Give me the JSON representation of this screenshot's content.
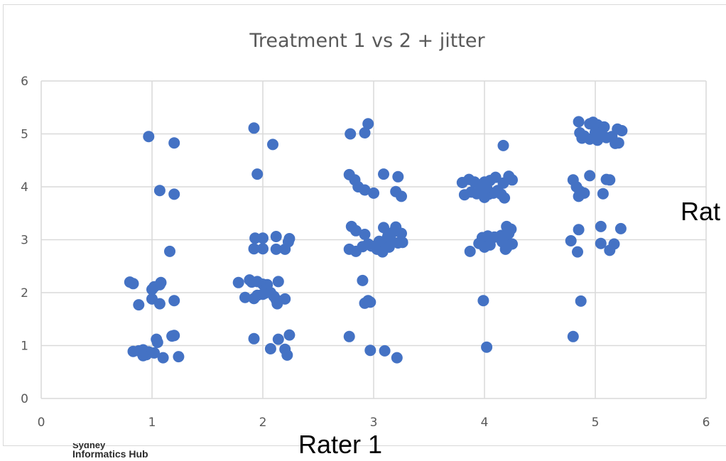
{
  "colors": {
    "point": "#4472c4",
    "grid": "#d9d9d9",
    "text": "#595959",
    "frame": "#d9d9d9"
  },
  "logo": {
    "line1": "Sydney",
    "line2": "Informatics Hub"
  },
  "chart_data": {
    "type": "scatter",
    "title": "Treatment 1 vs 2 + jitter",
    "xlabel": "Rater 1",
    "ylabel": "Rat",
    "xlim": [
      0,
      6
    ],
    "ylim": [
      0,
      6
    ],
    "xticks": [
      0,
      1,
      2,
      3,
      4,
      5,
      6
    ],
    "yticks": [
      0,
      1,
      2,
      3,
      4,
      5,
      6
    ],
    "grid": true,
    "legend": "none",
    "series": [
      {
        "color": "#4472c4",
        "points": [
          [
            0.97,
            4.95
          ],
          [
            1.2,
            4.83
          ],
          [
            1.07,
            3.93
          ],
          [
            1.2,
            3.86
          ],
          [
            1.16,
            2.78
          ],
          [
            0.8,
            2.2
          ],
          [
            0.83,
            2.17
          ],
          [
            1.02,
            2.11
          ],
          [
            1.07,
            2.15
          ],
          [
            1.0,
            2.06
          ],
          [
            1.08,
            2.19
          ],
          [
            1.0,
            1.88
          ],
          [
            1.07,
            1.79
          ],
          [
            1.2,
            1.85
          ],
          [
            0.88,
            1.77
          ],
          [
            1.18,
            1.18
          ],
          [
            1.2,
            1.19
          ],
          [
            1.04,
            1.12
          ],
          [
            1.05,
            1.06
          ],
          [
            0.83,
            0.89
          ],
          [
            0.88,
            0.9
          ],
          [
            0.92,
            0.92
          ],
          [
            0.95,
            0.83
          ],
          [
            0.97,
            0.88
          ],
          [
            0.92,
            0.81
          ],
          [
            1.02,
            0.86
          ],
          [
            1.1,
            0.77
          ],
          [
            1.24,
            0.79
          ],
          [
            1.92,
            5.11
          ],
          [
            2.09,
            4.8
          ],
          [
            1.95,
            4.24
          ],
          [
            1.93,
            3.03
          ],
          [
            2.0,
            3.03
          ],
          [
            2.12,
            3.06
          ],
          [
            2.24,
            3.02
          ],
          [
            1.92,
            2.83
          ],
          [
            2.0,
            2.83
          ],
          [
            2.12,
            2.82
          ],
          [
            2.23,
            2.96
          ],
          [
            2.2,
            2.82
          ],
          [
            1.78,
            2.19
          ],
          [
            1.88,
            2.24
          ],
          [
            1.9,
            2.2
          ],
          [
            1.95,
            2.21
          ],
          [
            2.0,
            2.16
          ],
          [
            2.04,
            2.15
          ],
          [
            2.14,
            2.21
          ],
          [
            1.84,
            1.91
          ],
          [
            1.92,
            1.89
          ],
          [
            1.95,
            1.95
          ],
          [
            2.0,
            1.97
          ],
          [
            2.02,
            1.99
          ],
          [
            2.07,
            2.0
          ],
          [
            2.1,
            1.93
          ],
          [
            2.12,
            1.87
          ],
          [
            2.13,
            1.79
          ],
          [
            2.2,
            1.88
          ],
          [
            1.92,
            1.13
          ],
          [
            2.14,
            1.12
          ],
          [
            2.24,
            1.2
          ],
          [
            2.07,
            0.94
          ],
          [
            2.2,
            0.93
          ],
          [
            2.22,
            0.82
          ],
          [
            2.79,
            5.0
          ],
          [
            2.92,
            5.02
          ],
          [
            2.95,
            5.19
          ],
          [
            2.78,
            4.23
          ],
          [
            2.83,
            4.13
          ],
          [
            2.86,
            4.0
          ],
          [
            2.92,
            3.94
          ],
          [
            3.0,
            3.88
          ],
          [
            3.09,
            4.24
          ],
          [
            3.2,
            3.91
          ],
          [
            3.25,
            3.82
          ],
          [
            3.22,
            4.19
          ],
          [
            2.8,
            3.25
          ],
          [
            2.84,
            3.17
          ],
          [
            2.92,
            3.1
          ],
          [
            3.09,
            3.23
          ],
          [
            3.13,
            3.08
          ],
          [
            3.18,
            3.15
          ],
          [
            3.2,
            3.24
          ],
          [
            3.25,
            3.12
          ],
          [
            2.78,
            2.82
          ],
          [
            2.84,
            2.78
          ],
          [
            2.9,
            2.87
          ],
          [
            2.95,
            2.92
          ],
          [
            2.98,
            2.88
          ],
          [
            3.03,
            2.82
          ],
          [
            3.08,
            2.77
          ],
          [
            3.1,
            2.9
          ],
          [
            3.12,
            3.02
          ],
          [
            3.17,
            2.96
          ],
          [
            3.22,
            2.94
          ],
          [
            3.26,
            2.95
          ],
          [
            3.05,
            2.97
          ],
          [
            3.14,
            2.86
          ],
          [
            2.9,
            2.23
          ],
          [
            2.95,
            1.85
          ],
          [
            2.92,
            1.8
          ],
          [
            2.97,
            1.82
          ],
          [
            2.78,
            1.17
          ],
          [
            2.97,
            0.91
          ],
          [
            3.1,
            0.9
          ],
          [
            3.21,
            0.77
          ],
          [
            4.17,
            4.78
          ],
          [
            3.8,
            4.08
          ],
          [
            3.86,
            4.14
          ],
          [
            3.91,
            4.09
          ],
          [
            3.96,
            4.02
          ],
          [
            4.0,
            4.09
          ],
          [
            4.05,
            4.12
          ],
          [
            4.1,
            4.18
          ],
          [
            4.17,
            4.07
          ],
          [
            4.22,
            4.2
          ],
          [
            4.25,
            4.13
          ],
          [
            3.82,
            3.85
          ],
          [
            3.88,
            3.9
          ],
          [
            3.93,
            3.87
          ],
          [
            3.97,
            3.94
          ],
          [
            4.0,
            3.8
          ],
          [
            4.04,
            3.86
          ],
          [
            4.08,
            3.88
          ],
          [
            4.12,
            3.93
          ],
          [
            4.15,
            3.86
          ],
          [
            4.18,
            3.79
          ],
          [
            4.02,
            3.98
          ],
          [
            4.2,
            3.25
          ],
          [
            4.24,
            3.2
          ],
          [
            3.98,
            3.04
          ],
          [
            4.03,
            3.07
          ],
          [
            4.09,
            3.05
          ],
          [
            4.15,
            3.08
          ],
          [
            4.22,
            3.12
          ],
          [
            3.87,
            2.78
          ],
          [
            3.95,
            2.93
          ],
          [
            4.0,
            2.86
          ],
          [
            4.05,
            2.9
          ],
          [
            4.16,
            2.96
          ],
          [
            4.2,
            2.85
          ],
          [
            4.22,
            2.92
          ],
          [
            4.25,
            2.92
          ],
          [
            4.19,
            2.82
          ],
          [
            3.99,
            1.85
          ],
          [
            4.02,
            0.97
          ],
          [
            4.85,
            5.23
          ],
          [
            4.95,
            5.19
          ],
          [
            4.98,
            5.22
          ],
          [
            5.02,
            5.17
          ],
          [
            5.08,
            5.13
          ],
          [
            5.2,
            5.09
          ],
          [
            5.24,
            5.06
          ],
          [
            4.86,
            5.02
          ],
          [
            4.9,
            4.96
          ],
          [
            4.95,
            4.9
          ],
          [
            5.0,
            5.03
          ],
          [
            5.05,
            5.01
          ],
          [
            5.1,
            4.93
          ],
          [
            5.15,
            4.95
          ],
          [
            5.18,
            4.82
          ],
          [
            5.21,
            4.83
          ],
          [
            4.88,
            4.92
          ],
          [
            5.02,
            4.88
          ],
          [
            4.8,
            4.13
          ],
          [
            4.83,
            4.0
          ],
          [
            4.86,
            3.92
          ],
          [
            4.9,
            3.88
          ],
          [
            4.95,
            4.21
          ],
          [
            5.07,
            3.87
          ],
          [
            5.1,
            4.14
          ],
          [
            5.13,
            4.13
          ],
          [
            4.85,
            3.82
          ],
          [
            4.85,
            3.19
          ],
          [
            5.05,
            3.25
          ],
          [
            5.23,
            3.21
          ],
          [
            4.78,
            2.98
          ],
          [
            4.84,
            2.77
          ],
          [
            5.05,
            2.93
          ],
          [
            5.13,
            2.8
          ],
          [
            5.17,
            2.92
          ],
          [
            4.87,
            1.84
          ],
          [
            4.8,
            1.17
          ]
        ]
      }
    ]
  }
}
